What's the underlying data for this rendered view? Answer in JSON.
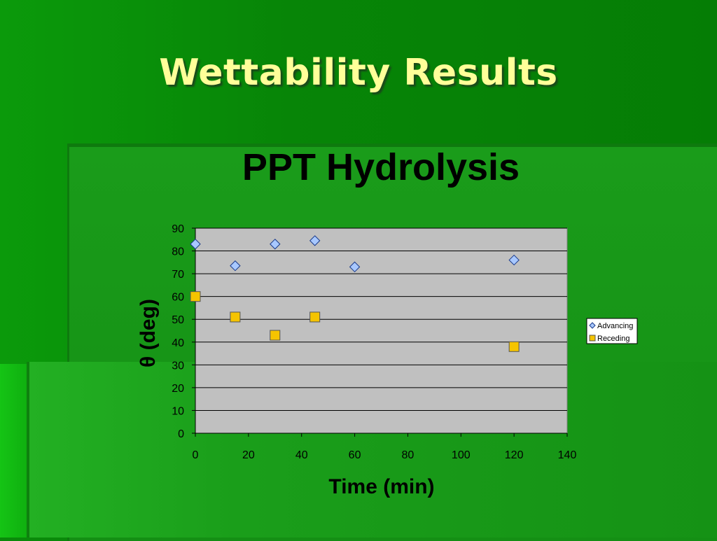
{
  "slide": {
    "title": "Wettability Results"
  },
  "colors": {
    "advancing": "#a8c8ff",
    "receding": "#f5c400",
    "plot_bg": "#c0c0c0",
    "title": "#ffff99"
  },
  "chart_data": {
    "type": "scatter",
    "title": "PPT Hydrolysis",
    "xlabel": "Time (min)",
    "ylabel": "θ (deg)",
    "xlim": [
      0,
      140
    ],
    "ylim": [
      0,
      90
    ],
    "xticks": [
      0,
      20,
      40,
      60,
      80,
      100,
      120,
      140
    ],
    "yticks": [
      0,
      10,
      20,
      30,
      40,
      50,
      60,
      70,
      80,
      90
    ],
    "grid": "horizontal",
    "legend_position": "right",
    "series": [
      {
        "name": "Advancing",
        "marker": "diamond",
        "x": [
          0,
          15,
          30,
          45,
          60,
          120
        ],
        "y": [
          83,
          73.5,
          83,
          84.5,
          73,
          76
        ]
      },
      {
        "name": "Receding",
        "marker": "square",
        "x": [
          0,
          15,
          30,
          45,
          120
        ],
        "y": [
          60,
          51,
          43,
          51,
          38
        ]
      }
    ]
  }
}
